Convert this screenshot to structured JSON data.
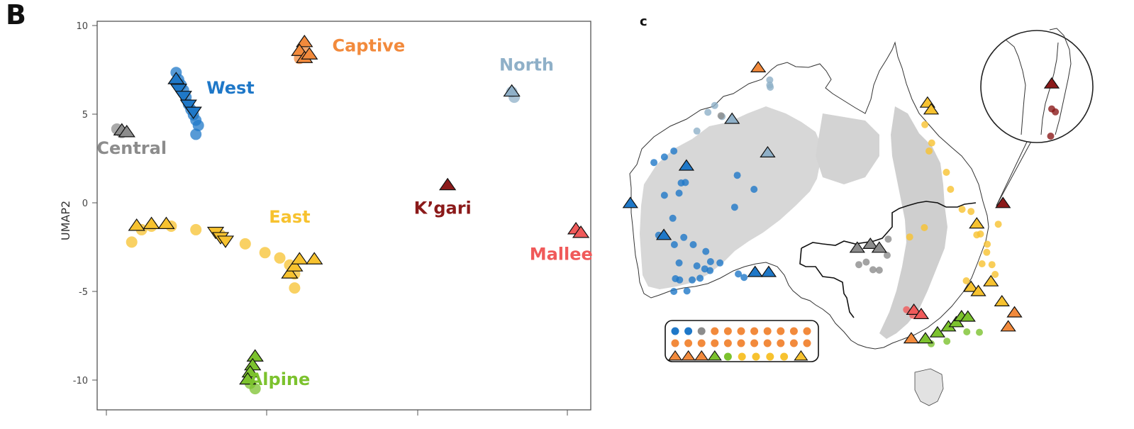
{
  "panel_b": {
    "label": "B",
    "ylabel": "UMAP2",
    "ytick_labels": [
      "10",
      "5",
      "0",
      "-5",
      "-10"
    ]
  },
  "panel_c": {
    "label": "c"
  },
  "chart_data": [
    {
      "type": "scatter",
      "ylabel": "UMAP2",
      "ylim": [
        -11.7,
        10.3
      ],
      "xlim": [
        0,
        1
      ],
      "x_axis_tick_labels_visible": false,
      "grid": false,
      "colors": {
        "West": "#1f78c8",
        "Captive": "#f28a3c",
        "North": "#8fb0c8",
        "Central": "#8c8c8c",
        "East": "#f7c22f",
        "Kgari": "#8b1a1a",
        "Mallee": "#f05a5a",
        "Alpine": "#7cc22e"
      },
      "groups": [
        {
          "label": "West",
          "color_key": "West",
          "label_x": 0.27,
          "label_y": 6.2,
          "points": [
            [
              0.16,
              7.4
            ],
            [
              0.165,
              7.0
            ],
            [
              0.17,
              6.7
            ],
            [
              0.175,
              6.4
            ],
            [
              0.18,
              6.0
            ],
            [
              0.185,
              5.6
            ],
            [
              0.19,
              5.3
            ],
            [
              0.195,
              5.0
            ],
            [
              0.2,
              4.7
            ],
            [
              0.205,
              4.4
            ],
            [
              0.2,
              3.9
            ]
          ],
          "triangles_up": [
            [
              0.16,
              7.0
            ]
          ],
          "triangles_down": [
            [
              0.165,
              6.5
            ],
            [
              0.175,
              6.1
            ],
            [
              0.185,
              5.6
            ],
            [
              0.195,
              5.2
            ]
          ]
        },
        {
          "label": "Captive",
          "color_key": "Captive",
          "label_x": 0.55,
          "label_y": 8.6,
          "points": [
            [
              0.41,
              8.2
            ],
            [
              0.42,
              8.6
            ]
          ],
          "triangles_up": [
            [
              0.42,
              9.1
            ],
            [
              0.41,
              8.6
            ],
            [
              0.42,
              8.2
            ],
            [
              0.43,
              8.4
            ]
          ],
          "triangles_down": []
        },
        {
          "label": "North",
          "color_key": "North",
          "label_x": 0.87,
          "label_y": 7.5,
          "points": [
            [
              0.84,
              6.3
            ],
            [
              0.845,
              6.0
            ]
          ],
          "triangles_up": [
            [
              0.84,
              6.3
            ]
          ],
          "triangles_down": []
        },
        {
          "label": "Central",
          "color_key": "Central",
          "label_x": 0.07,
          "label_y": 2.8,
          "points": [
            [
              0.04,
              4.2
            ],
            [
              0.05,
              4.0
            ]
          ],
          "triangles_up": [
            [
              0.05,
              4.1
            ],
            [
              0.06,
              4.0
            ]
          ],
          "triangles_down": []
        },
        {
          "label": "East",
          "color_key": "East",
          "label_x": 0.39,
          "label_y": -1.1,
          "points": [
            [
              0.07,
              -2.2
            ],
            [
              0.09,
              -1.5
            ],
            [
              0.11,
              -1.3
            ],
            [
              0.15,
              -1.3
            ],
            [
              0.2,
              -1.5
            ],
            [
              0.25,
              -1.8
            ],
            [
              0.3,
              -2.3
            ],
            [
              0.34,
              -2.8
            ],
            [
              0.37,
              -3.1
            ],
            [
              0.39,
              -3.5
            ],
            [
              0.4,
              -4.0
            ],
            [
              0.4,
              -4.8
            ]
          ],
          "triangles_up": [
            [
              0.08,
              -1.3
            ],
            [
              0.11,
              -1.2
            ],
            [
              0.14,
              -1.2
            ],
            [
              0.39,
              -4.0
            ],
            [
              0.4,
              -3.6
            ],
            [
              0.41,
              -3.2
            ],
            [
              0.44,
              -3.2
            ]
          ],
          "triangles_down": [
            [
              0.24,
              -1.6
            ],
            [
              0.25,
              -1.9
            ],
            [
              0.26,
              -2.1
            ]
          ]
        },
        {
          "label": "K’gari",
          "color_key": "Kgari",
          "label_x": 0.7,
          "label_y": -0.6,
          "points": [],
          "triangles_up": [
            [
              0.71,
              1.0
            ]
          ],
          "triangles_down": []
        },
        {
          "label": "Mallee",
          "color_key": "Mallee",
          "label_x": 0.94,
          "label_y": -3.2,
          "points": [],
          "triangles_up": [
            [
              0.97,
              -1.5
            ],
            [
              0.98,
              -1.7
            ]
          ],
          "triangles_down": []
        },
        {
          "label": "Alpine",
          "color_key": "Alpine",
          "label_x": 0.37,
          "label_y": -10.3,
          "points": [
            [
              0.31,
              -10.2
            ],
            [
              0.32,
              -10.5
            ]
          ],
          "triangles_up": [
            [
              0.32,
              -8.7
            ],
            [
              0.315,
              -9.2
            ],
            [
              0.31,
              -9.6
            ],
            [
              0.305,
              -10.0
            ]
          ],
          "triangles_down": []
        }
      ]
    },
    {
      "type": "scatter",
      "legend": {
        "placement": "bottom-left",
        "rows": [
          [
            "West",
            "West",
            "Central",
            "Captive",
            "Captive",
            "Captive",
            "Captive",
            "Captive",
            "Captive",
            "Captive",
            "Captive"
          ],
          [
            "Captive",
            "Captive",
            "Captive",
            "Captive",
            "Captive",
            "Captive",
            "Captive",
            "Captive",
            "Captive",
            "Captive",
            "Captive"
          ],
          [
            "Captive",
            "Captive",
            "Captive",
            "Alpine",
            "Alpine",
            "East",
            "East",
            "East",
            "East",
            "East"
          ]
        ]
      },
      "inset": "circle-top-right",
      "triangle_markers": {
        "Captive": [
          [
            0.283,
            0.16
          ],
          [
            0.76,
            0.769
          ],
          [
            0.772,
            0.736
          ],
          [
            0.575,
            0.797
          ]
        ],
        "North": [
          [
            0.233,
            0.281
          ],
          [
            0.301,
            0.36
          ]
        ],
        "West": [
          [
            0.146,
            0.391
          ],
          [
            0.039,
            0.479
          ],
          [
            0.103,
            0.554
          ],
          [
            0.277,
            0.641
          ],
          [
            0.303,
            0.641
          ]
        ],
        "East": [
          [
            0.606,
            0.243
          ],
          [
            0.613,
            0.259
          ],
          [
            0.7,
            0.527
          ],
          [
            0.689,
            0.676
          ],
          [
            0.703,
            0.686
          ],
          [
            0.727,
            0.663
          ],
          [
            0.748,
            0.71
          ]
        ],
        "Kgari": [
          [
            0.75,
            0.479
          ],
          [
            0.843,
            0.198
          ]
        ],
        "Central": [
          [
            0.472,
            0.584
          ],
          [
            0.497,
            0.575
          ],
          [
            0.514,
            0.584
          ]
        ],
        "Mallee": [
          [
            0.58,
            0.73
          ],
          [
            0.594,
            0.74
          ]
        ],
        "Alpine": [
          [
            0.602,
            0.797
          ],
          [
            0.625,
            0.783
          ],
          [
            0.646,
            0.769
          ],
          [
            0.661,
            0.759
          ],
          [
            0.671,
            0.745
          ],
          [
            0.683,
            0.746
          ]
        ]
      },
      "dot_markers": {
        "West": [
          [
            0.084,
            0.382
          ],
          [
            0.104,
            0.369
          ],
          [
            0.122,
            0.355
          ],
          [
            0.132,
            0.454
          ],
          [
            0.144,
            0.429
          ],
          [
            0.104,
            0.459
          ],
          [
            0.12,
            0.513
          ],
          [
            0.093,
            0.553
          ],
          [
            0.123,
            0.575
          ],
          [
            0.132,
            0.618
          ],
          [
            0.141,
            0.558
          ],
          [
            0.159,
            0.575
          ],
          [
            0.183,
            0.591
          ],
          [
            0.181,
            0.632
          ],
          [
            0.191,
            0.636
          ],
          [
            0.157,
            0.658
          ],
          [
            0.133,
            0.658
          ],
          [
            0.122,
            0.685
          ],
          [
            0.147,
            0.684
          ],
          [
            0.166,
            0.625
          ],
          [
            0.172,
            0.654
          ],
          [
            0.192,
            0.615
          ],
          [
            0.21,
            0.618
          ],
          [
            0.245,
            0.644
          ],
          [
            0.256,
            0.652
          ],
          [
            0.243,
            0.412
          ],
          [
            0.275,
            0.445
          ],
          [
            0.238,
            0.487
          ],
          [
            0.125,
            0.655
          ],
          [
            0.136,
            0.43
          ]
        ],
        "North": [
          [
            0.166,
            0.308
          ],
          [
            0.187,
            0.264
          ],
          [
            0.2,
            0.248
          ],
          [
            0.214,
            0.274
          ],
          [
            0.305,
            0.188
          ],
          [
            0.306,
            0.205
          ],
          [
            0.305,
            0.2
          ]
        ],
        "Central": [
          [
            0.212,
            0.272
          ],
          [
            0.475,
            0.622
          ],
          [
            0.489,
            0.616
          ],
          [
            0.502,
            0.634
          ],
          [
            0.514,
            0.635
          ],
          [
            0.529,
            0.6
          ],
          [
            0.531,
            0.562
          ]
        ],
        "East": [
          [
            0.601,
            0.293
          ],
          [
            0.614,
            0.336
          ],
          [
            0.609,
            0.355
          ],
          [
            0.642,
            0.405
          ],
          [
            0.65,
            0.445
          ],
          [
            0.672,
            0.492
          ],
          [
            0.689,
            0.497
          ],
          [
            0.7,
            0.552
          ],
          [
            0.707,
            0.55
          ],
          [
            0.719,
            0.593
          ],
          [
            0.729,
            0.622
          ],
          [
            0.735,
            0.645
          ],
          [
            0.72,
            0.574
          ],
          [
            0.741,
            0.527
          ],
          [
            0.71,
            0.62
          ],
          [
            0.68,
            0.66
          ],
          [
            0.6,
            0.535
          ],
          [
            0.572,
            0.557
          ]
        ],
        "Alpine": [
          [
            0.613,
            0.808
          ],
          [
            0.643,
            0.802
          ],
          [
            0.681,
            0.78
          ],
          [
            0.705,
            0.781
          ]
        ],
        "Mallee": [
          [
            0.566,
            0.728
          ],
          [
            0.578,
            0.741
          ]
        ],
        "Kgari": [
          [
            0.843,
            0.256
          ],
          [
            0.85,
            0.263
          ],
          [
            0.841,
            0.32
          ]
        ]
      }
    }
  ]
}
